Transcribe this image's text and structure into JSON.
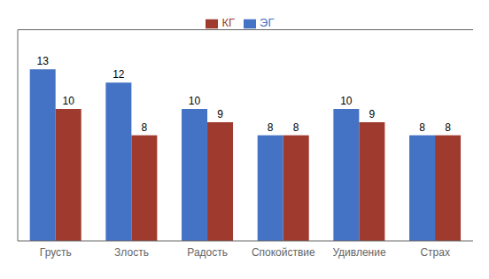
{
  "chart_data": {
    "type": "bar",
    "categories": [
      "Грусть",
      "Злость",
      "Радость",
      "Спокойствие",
      "Удивление",
      "Страх"
    ],
    "series": [
      {
        "name": "ЭГ",
        "color": "#4472C4",
        "values": [
          13,
          12,
          10,
          8,
          10,
          8
        ]
      },
      {
        "name": "КГ",
        "color": "#9E3B2E",
        "values": [
          10,
          8,
          9,
          8,
          9,
          8
        ]
      }
    ],
    "ylim": [
      0,
      16
    ],
    "data_labels": true,
    "tick_labels": "x",
    "legend": "top",
    "grid": false
  }
}
